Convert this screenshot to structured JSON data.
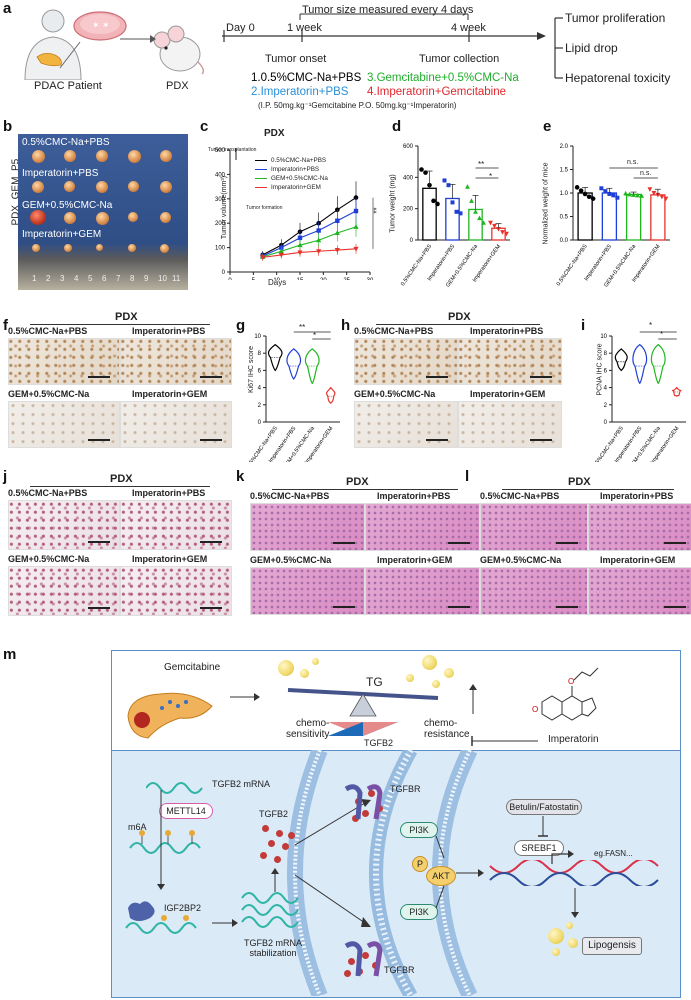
{
  "panel_a": {
    "label": "a",
    "patient": "PDAC Patient",
    "model": "PDX",
    "header": "Tumor size measured every 4 days",
    "timeline": [
      "Day 0",
      "1 week",
      "4 week"
    ],
    "timeline_events": [
      "Tumor onset",
      "Tumor collection"
    ],
    "groups": {
      "g1": "1.0.5%CMC-Na+PBS",
      "g2": "2.Imperatorin+PBS",
      "g3": "3.Gemcitabine+0.5%CMC-Na",
      "g4": "4.Imperatorin+Gemcitabine"
    },
    "dosing": "(I.P.  50mg.kg⁻¹Gemcitabine  P.O. 50mg.kg⁻¹Imperatorin)",
    "outcomes": [
      "Tumor proliferation",
      "Lipid drop",
      "Hepatorenal toxicity"
    ]
  },
  "panel_b": {
    "label": "b",
    "side": "PDX_GEM_P5",
    "rows": [
      "0.5%CMC-Na+PBS",
      "Imperatorin+PBS",
      "GEM+0.5%CMC-Na",
      "Imperatorin+GEM"
    ],
    "ruler": [
      "1",
      "2",
      "3",
      "4",
      "5",
      "6",
      "7",
      "8",
      "9",
      "10",
      "11"
    ]
  },
  "panel_c": {
    "label": "c",
    "title": "PDX",
    "annotations": [
      "Tumor transplantation",
      "Tumor formation"
    ],
    "sig": "**"
  },
  "panel_d": {
    "label": "d",
    "sig1": "**",
    "sig2": "*"
  },
  "panel_e": {
    "label": "e",
    "sig1": "n.s.",
    "sig2": "n.s."
  },
  "panel_f": {
    "label": "f",
    "title": "PDX",
    "cells": [
      "0.5%CMC-Na+PBS",
      "Imperatorin+PBS",
      "GEM+0.5%CMC-Na",
      "Imperatorin+GEM"
    ]
  },
  "panel_g": {
    "label": "g",
    "sig1": "**",
    "sig2": "*"
  },
  "panel_h": {
    "label": "h",
    "title": "PDX",
    "cells": [
      "0.5%CMC-Na+PBS",
      "Imperatorin+PBS",
      "GEM+0.5%CMC-Na",
      "Imperatorin+GEM"
    ]
  },
  "panel_i": {
    "label": "i",
    "sig1": "*",
    "sig2": "*"
  },
  "panel_j": {
    "label": "j",
    "title": "PDX",
    "cells": [
      "0.5%CMC-Na+PBS",
      "Imperatorin+PBS",
      "GEM+0.5%CMC-Na",
      "Imperatorin+GEM"
    ]
  },
  "panel_k": {
    "label": "k",
    "title": "PDX",
    "cells": [
      "0.5%CMC-Na+PBS",
      "Imperatorin+PBS",
      "GEM+0.5%CMC-Na",
      "Imperatorin+GEM"
    ]
  },
  "panel_l": {
    "label": "l",
    "title": "PDX",
    "cells": [
      "0.5%CMC-Na+PBS",
      "Imperatorin+PBS",
      "GEM+0.5%CMC-Na",
      "Imperatorin+GEM"
    ]
  },
  "panel_m": {
    "label": "m",
    "gemcitabine": "Gemcitabine",
    "imperatorin": "Imperatorin",
    "tg": "TG",
    "tgfb2": "TGFB2",
    "chemo_sens": "chemo-\nsensitivity",
    "chemo_res": "chemo-\nresistance",
    "mrna": "TGFB2 mRNA",
    "mettl14": "METTL14",
    "m6a": "m6A",
    "igf2bp2": "IGF2BP2",
    "tgfb2_protein": "TGFB2",
    "stabilization": "TGFB2 mRNA\nstabilization",
    "tgfbr_top": "TGFBR",
    "tgfbr_bottom": "TGFBR",
    "pi3k_top": "PI3K",
    "pi3k_bottom": "PI3K",
    "p": "P",
    "akt": "AKT",
    "inhibitor": "Betulin/Fatostatin",
    "srebf1": "SREBF1",
    "fasn": "eg.FASN...",
    "lipogenesis": "Lipogensis"
  },
  "colors": {
    "g1": "#000000",
    "g2": "#1f3fd6",
    "g3": "#1fb61f",
    "g4": "#e8332c"
  },
  "chart_data": [
    {
      "type": "line",
      "panel": "c",
      "title": "PDX",
      "xlabel": "Days",
      "ylabel": "Tumor volume(mm³)",
      "xlim": [
        0,
        30
      ],
      "ylim": [
        0,
        500
      ],
      "xticks": [
        "0",
        "5",
        "10",
        "15",
        "20",
        "25",
        "30"
      ],
      "yticks": [
        "0",
        "100",
        "200",
        "300",
        "400",
        "500"
      ],
      "x": [
        7,
        11,
        15,
        19,
        23,
        27
      ],
      "series": [
        {
          "name": "0.5%CMC-Na+PBS",
          "values": [
            70,
            110,
            165,
            200,
            255,
            305
          ]
        },
        {
          "name": "Imperatorin+PBS",
          "values": [
            65,
            100,
            140,
            170,
            210,
            250
          ]
        },
        {
          "name": "GEM+0.5%CMC-Na",
          "values": [
            62,
            85,
            110,
            130,
            160,
            185
          ]
        },
        {
          "name": "Imperatorin+GEM",
          "values": [
            60,
            70,
            80,
            85,
            90,
            95
          ]
        }
      ],
      "legend": "top-left"
    },
    {
      "type": "bar",
      "panel": "d",
      "ylabel": "Tumor weight (mg)",
      "ylim": [
        0,
        600
      ],
      "yticks": [
        "0",
        "200",
        "400",
        "600"
      ],
      "categories": [
        "0.5%CMC-Na+PBS",
        "Imperatorin+PBS",
        "GEM+0.5%CMC-Na",
        "Imperatorin+GEM"
      ],
      "values": [
        330,
        265,
        195,
        75
      ]
    },
    {
      "type": "bar",
      "panel": "e",
      "ylabel": "Normalized weight of mice",
      "ylim": [
        0,
        2.0
      ],
      "yticks": [
        "0.0",
        "0.5",
        "1.0",
        "1.5",
        "2.0"
      ],
      "categories": [
        "0.5%CMC-Na+PBS",
        "Imperatorin+PBS",
        "GEM+0.5%CMC-Na",
        "Imperatorin+GEM"
      ],
      "values": [
        1.0,
        1.0,
        0.97,
        0.96
      ]
    },
    {
      "type": "violin",
      "panel": "g",
      "ylabel": "Ki67 IHC score",
      "ylim": [
        0,
        10
      ],
      "yticks": [
        "0",
        "2",
        "4",
        "6",
        "8",
        "10"
      ],
      "categories": [
        "0.5%CMC-Na+PBS",
        "Imperatorin+PBS",
        "GEM+0.5%CMC-Na",
        "Imperatorin+GEM"
      ],
      "values": [
        7.5,
        6.5,
        6.5,
        3.0
      ]
    },
    {
      "type": "violin",
      "panel": "i",
      "ylabel": "PCNA IHC score",
      "ylim": [
        0,
        10
      ],
      "yticks": [
        "0",
        "2",
        "4",
        "6",
        "8",
        "10"
      ],
      "categories": [
        "0.5%CMC-Na+PBS",
        "Imperatorin+PBS",
        "GEM+0.5%CMC-Na",
        "Imperatorin+GEM"
      ],
      "values": [
        7.0,
        6.5,
        6.5,
        3.5
      ]
    }
  ]
}
